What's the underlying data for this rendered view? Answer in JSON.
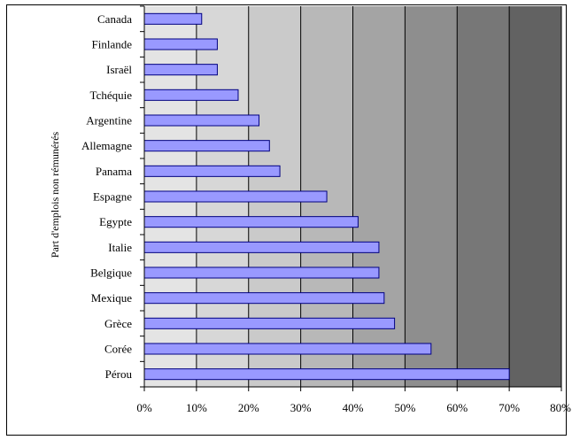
{
  "chart_data": {
    "type": "bar",
    "orientation": "horizontal",
    "categories": [
      "Canada",
      "Finlande",
      "Israël",
      "Tchéquie",
      "Argentine",
      "Allemagne",
      "Panama",
      "Espagne",
      "Egypte",
      "Italie",
      "Belgique",
      "Mexique",
      "Grèce",
      "Corée",
      "Pérou"
    ],
    "values": [
      11,
      14,
      14,
      18,
      22,
      24,
      26,
      35,
      41,
      45,
      45,
      46,
      48,
      55,
      70
    ],
    "title": "",
    "xlabel": "",
    "ylabel": "Part d'emplois non rémunérés",
    "xlim": [
      0,
      80
    ],
    "x_ticks": [
      "0%",
      "10%",
      "20%",
      "30%",
      "40%",
      "50%",
      "60%",
      "70%",
      "80%"
    ],
    "grid": "vertical",
    "background": "gradient-bands",
    "band_colors": [
      "#e4e4e4",
      "#d7d7d7",
      "#cacaca",
      "#b8b8b8",
      "#a4a4a4",
      "#8e8e8e",
      "#777777",
      "#626262"
    ],
    "bar_color": "#9999ff",
    "bar_edge_color": "#000080",
    "legend": "none"
  }
}
